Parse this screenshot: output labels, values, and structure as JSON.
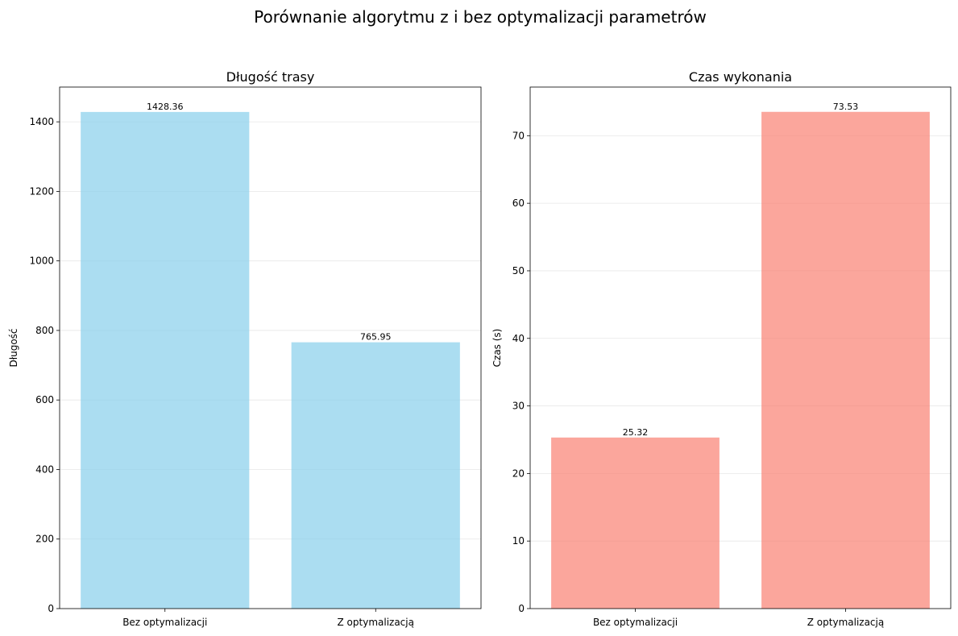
{
  "figure_title": "Porównanie algorytmu z i bez optymalizacji parametrów",
  "chart_data": [
    {
      "type": "bar",
      "title": "Długość trasy",
      "xlabel": "",
      "ylabel": "Długość",
      "categories": [
        "Bez optymalizacji",
        "Z optymalizacją"
      ],
      "values": [
        1428.36,
        765.95
      ],
      "value_labels": [
        "1428.36",
        "765.95"
      ],
      "ylim": [
        0,
        1500
      ],
      "yticks": [
        0,
        200,
        400,
        600,
        800,
        1000,
        1200,
        1400
      ],
      "grid": true,
      "color": "#87CEEB",
      "alpha": 0.7
    },
    {
      "type": "bar",
      "title": "Czas wykonania",
      "xlabel": "",
      "ylabel": "Czas (s)",
      "categories": [
        "Bez optymalizacji",
        "Z optymalizacją"
      ],
      "values": [
        25.32,
        73.53
      ],
      "value_labels": [
        "25.32",
        "73.53"
      ],
      "ylim": [
        0,
        77.2
      ],
      "yticks": [
        0,
        10,
        20,
        30,
        40,
        50,
        60,
        70
      ],
      "grid": true,
      "color": "#FA8072",
      "alpha": 0.7
    }
  ]
}
